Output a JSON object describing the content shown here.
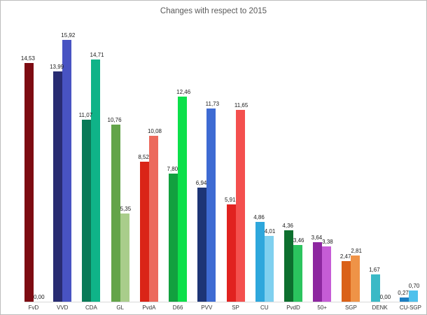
{
  "chart_data": {
    "type": "bar",
    "title": "Changes with respect to 2015",
    "title_color": "#595959",
    "decimal_separator": ",",
    "legend": "none",
    "grid": "off",
    "ylim": [
      0,
      16
    ],
    "axis_line_color": "#d9d9d9",
    "categories": [
      "FvD",
      "VVD",
      "CDA",
      "GL",
      "PvdA",
      "D66",
      "PVV",
      "SP",
      "CU",
      "PvdD",
      "50+",
      "SGP",
      "DENK",
      "CU-SGP"
    ],
    "series": [
      {
        "values_display": [
          "14,53",
          "13,99",
          "11,07",
          "10,76",
          "8,52",
          "7,80",
          "6,94",
          "5,91",
          "4,86",
          "4,36",
          "3,64",
          "2,47",
          "1,67",
          "0,27"
        ],
        "values": [
          14.53,
          13.99,
          11.07,
          10.76,
          8.52,
          7.8,
          6.94,
          5.91,
          4.86,
          4.36,
          3.64,
          2.47,
          1.67,
          0.27
        ],
        "colors": [
          "#7d0b12",
          "#282c72",
          "#0a7a57",
          "#63a449",
          "#da2417",
          "#12a03f",
          "#1d3576",
          "#e12220",
          "#2ea7dc",
          "#0d6f2e",
          "#8d27a0",
          "#da6118",
          "#3ab9c6",
          "#1d7fc2"
        ]
      },
      {
        "values_display": [
          "0,00",
          "15,92",
          "14,71",
          "5,35",
          "10,08",
          "12,46",
          "11,73",
          "11,65",
          "4,01",
          "3,46",
          "3,38",
          "2,81",
          "0,00",
          "0,70"
        ],
        "values": [
          0.0,
          15.92,
          14.71,
          5.35,
          10.08,
          12.46,
          11.73,
          11.65,
          4.01,
          3.46,
          3.38,
          2.81,
          0.0,
          0.7
        ],
        "colors": [
          "#7d0b12",
          "#4853c2",
          "#0fb388",
          "#a9cd8b",
          "#ec6a5d",
          "#0ce04a",
          "#3e6bd3",
          "#f4504e",
          "#7fd0ef",
          "#2bc45e",
          "#c55cd6",
          "#ef9347",
          "#3ab9c6",
          "#4ec1ec"
        ]
      }
    ]
  }
}
